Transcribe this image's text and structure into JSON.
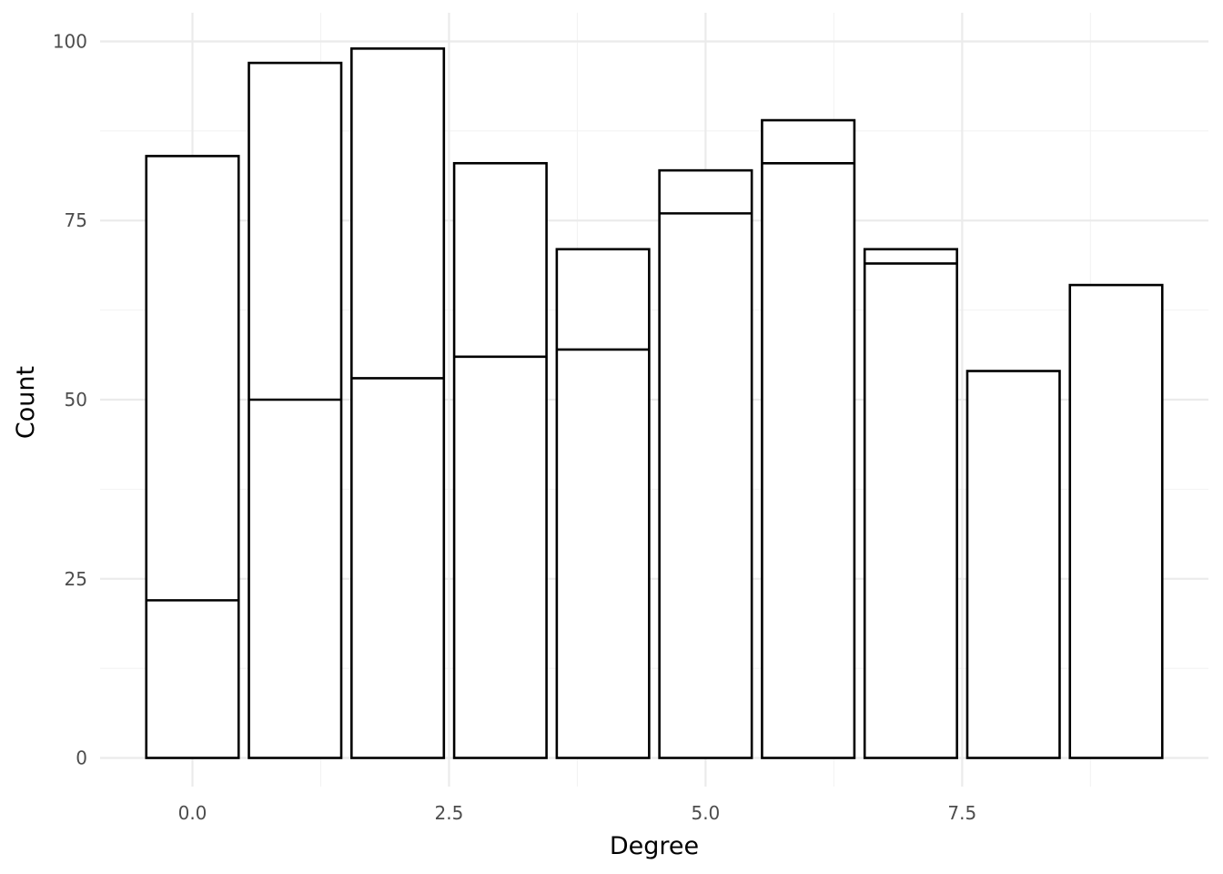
{
  "chart_data": {
    "type": "bar",
    "stacked": true,
    "xlabel": "Degree",
    "ylabel": "Count",
    "xlim": [
      -0.9,
      9.9
    ],
    "ylim": [
      -4,
      104
    ],
    "x_ticks": [
      0.0,
      2.5,
      5.0,
      7.5
    ],
    "x_tick_labels": [
      "0.0",
      "2.5",
      "5.0",
      "7.5"
    ],
    "y_ticks": [
      0,
      25,
      50,
      75,
      100
    ],
    "y_tick_labels": [
      "0",
      "25",
      "50",
      "75",
      "100"
    ],
    "grid": true,
    "bar_fill": "#ffffff",
    "bar_outline": "#000000",
    "x": [
      0,
      1,
      2,
      3,
      4,
      5,
      6,
      7,
      8,
      9
    ],
    "series": [
      {
        "values": [
          22,
          50,
          53,
          56,
          57,
          76,
          83,
          69,
          54,
          66
        ]
      },
      {
        "values": [
          62,
          47,
          46,
          27,
          14,
          6,
          6,
          2,
          0,
          0
        ]
      }
    ],
    "totals": [
      84,
      97,
      99,
      83,
      71,
      82,
      89,
      71,
      54,
      66
    ]
  }
}
